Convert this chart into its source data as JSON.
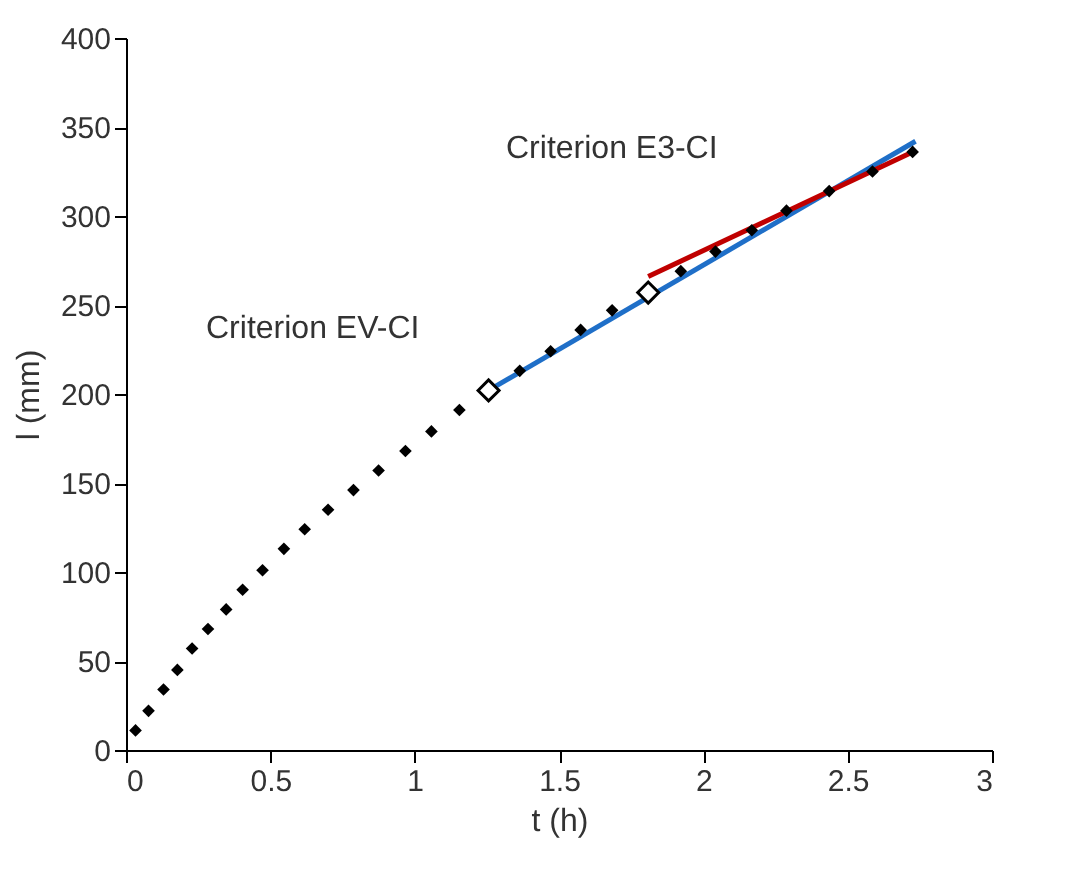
{
  "chart_data": {
    "type": "scatter",
    "xlabel": "t (h)",
    "ylabel": "l (mm)",
    "xlim": [
      0,
      3
    ],
    "xticks": [
      0,
      0.5,
      1,
      1.5,
      2,
      2.5,
      3
    ],
    "ylim": [
      0,
      400
    ],
    "yticks": [
      0,
      50,
      100,
      150,
      200,
      250,
      300,
      350,
      400
    ],
    "grid": false,
    "series": [
      {
        "type": "line",
        "color": "#1f6fc8",
        "x": [
          1.256,
          2.735
        ],
        "values": [
          202,
          342
        ],
        "marker": "none"
      },
      {
        "type": "line",
        "color": "#c00000",
        "x": [
          1.809,
          2.725
        ],
        "values": [
          266,
          336
        ],
        "marker": "none"
      },
      {
        "color": "#000000",
        "marker": "diamond",
        "x": [
          0.033,
          0.078,
          0.13,
          0.178,
          0.229,
          0.284,
          0.347,
          0.404,
          0.473,
          0.547,
          0.619,
          0.7,
          0.788,
          0.875,
          0.968,
          1.058,
          1.155,
          1.364,
          1.471,
          1.575,
          1.684,
          1.922,
          2.042,
          2.168,
          2.288,
          2.436,
          2.586,
          2.725
        ],
        "values": [
          11,
          22,
          34,
          45,
          57,
          68,
          79,
          90,
          101,
          113,
          124,
          135,
          146,
          157,
          168,
          179,
          191,
          213,
          224,
          236,
          247,
          269,
          280,
          292,
          303,
          314,
          325,
          336
        ]
      },
      {
        "color": "#ffffff",
        "marker": "diamond",
        "x": [
          1.256,
          1.809
        ],
        "values": [
          202,
          257
        ]
      }
    ],
    "annotations": [
      "Criterion EV-CI",
      "Criterion E3-CI"
    ]
  }
}
